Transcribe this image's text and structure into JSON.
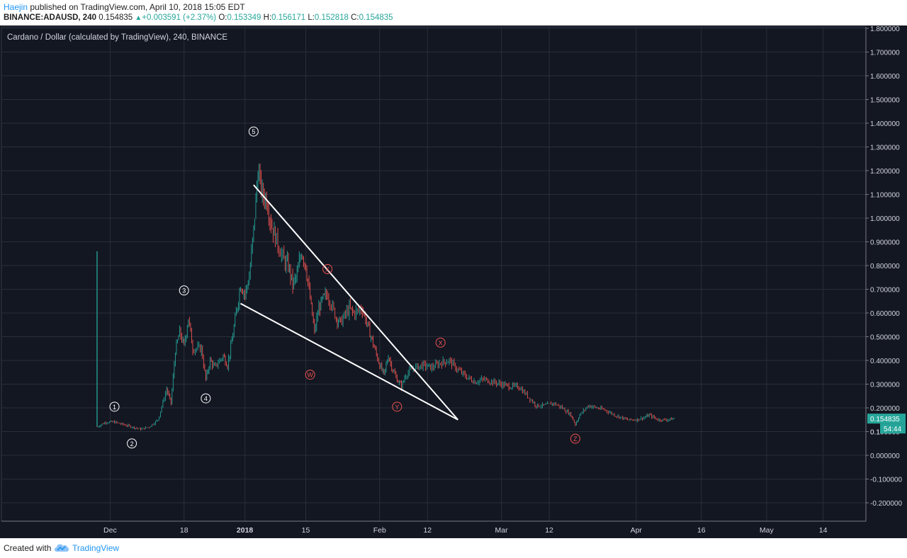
{
  "header": {
    "author": "Haejin",
    "published_text": " published on TradingView.com, April 10, 2018 15:05 EDT",
    "symbol": "BINANCE:ADAUSD, 240",
    "last": "0.154835",
    "change": "+0.003591 (+2.37%)",
    "o_label": "O:",
    "o": "0.153349",
    "h_label": "H:",
    "h": "0.156171",
    "l_label": "L:",
    "l": "0.152818",
    "c_label": "C:",
    "c": "0.154835"
  },
  "footer": {
    "created_with": "Created with",
    "brand": "TradingView"
  },
  "colors": {
    "background": "#131722",
    "grid": "#2a2e39",
    "up": "#26a69a",
    "down": "#ef5350",
    "trendline": "#ffffff",
    "wave_label_white": "#ffffff",
    "wave_label_red": "#ef5350",
    "price_badge": "#26a69a"
  },
  "chart_data": {
    "type": "candlestick",
    "title": "Cardano / Dollar (calculated by TradingView), 240, BINANCE",
    "xlabel": "",
    "ylabel": "",
    "ylim": [
      -0.3,
      1.8
    ],
    "grid": true,
    "x_start": "2017-11-28",
    "x_end": "2018-05-17",
    "x_ticks": [
      {
        "date": "2017-12-01",
        "label": "Dec"
      },
      {
        "date": "2017-12-18",
        "label": "18"
      },
      {
        "date": "2018-01-01",
        "label": "2018"
      },
      {
        "date": "2018-01-15",
        "label": "15"
      },
      {
        "date": "2018-02-01",
        "label": "Feb"
      },
      {
        "date": "2018-02-12",
        "label": "12"
      },
      {
        "date": "2018-03-01",
        "label": "Mar"
      },
      {
        "date": "2018-03-12",
        "label": "12"
      },
      {
        "date": "2018-04-01",
        "label": "Apr"
      },
      {
        "date": "2018-04-16",
        "label": "16"
      },
      {
        "date": "2018-05-01",
        "label": "May"
      },
      {
        "date": "2018-05-14",
        "label": "14"
      }
    ],
    "y_ticks": [
      "1.800000",
      "1.700000",
      "1.600000",
      "1.500000",
      "1.400000",
      "1.300000",
      "1.200000",
      "1.100000",
      "1.000000",
      "0.900000",
      "0.800000",
      "0.700000",
      "0.600000",
      "0.500000",
      "0.400000",
      "0.300000",
      "0.200000",
      "0.100000",
      "0.000000",
      "-0.100000",
      "-0.200000"
    ],
    "y_tick_values": [
      1.8,
      1.7,
      1.6,
      1.5,
      1.4,
      1.3,
      1.2,
      1.1,
      1.0,
      0.9,
      0.8,
      0.7,
      0.6,
      0.5,
      0.4,
      0.3,
      0.2,
      0.1,
      0.0,
      -0.1,
      -0.2
    ],
    "price_path": [
      [
        "2017-11-28",
        0.86
      ],
      [
        "2017-11-28",
        0.12
      ],
      [
        "2017-11-30",
        0.14
      ],
      [
        "2017-12-02",
        0.14
      ],
      [
        "2017-12-04",
        0.13
      ],
      [
        "2017-12-06",
        0.12
      ],
      [
        "2017-12-08",
        0.11
      ],
      [
        "2017-12-10",
        0.12
      ],
      [
        "2017-12-12",
        0.15
      ],
      [
        "2017-12-14",
        0.28
      ],
      [
        "2017-12-15",
        0.22
      ],
      [
        "2017-12-16",
        0.44
      ],
      [
        "2017-12-17",
        0.52
      ],
      [
        "2017-12-18",
        0.46
      ],
      [
        "2017-12-19",
        0.58
      ],
      [
        "2017-12-20",
        0.45
      ],
      [
        "2017-12-22",
        0.45
      ],
      [
        "2017-12-23",
        0.32
      ],
      [
        "2017-12-24",
        0.4
      ],
      [
        "2017-12-25",
        0.37
      ],
      [
        "2017-12-27",
        0.42
      ],
      [
        "2017-12-28",
        0.38
      ],
      [
        "2017-12-29",
        0.48
      ],
      [
        "2017-12-30",
        0.6
      ],
      [
        "2017-12-31",
        0.72
      ],
      [
        "2018-01-01",
        0.68
      ],
      [
        "2018-01-02",
        0.75
      ],
      [
        "2018-01-03",
        0.95
      ],
      [
        "2018-01-04",
        1.2
      ],
      [
        "2018-01-05",
        1.1
      ],
      [
        "2018-01-06",
        1.08
      ],
      [
        "2018-01-07",
        0.98
      ],
      [
        "2018-01-08",
        0.92
      ],
      [
        "2018-01-10",
        0.82
      ],
      [
        "2018-01-11",
        0.8
      ],
      [
        "2018-01-12",
        0.72
      ],
      [
        "2018-01-13",
        0.76
      ],
      [
        "2018-01-14",
        0.86
      ],
      [
        "2018-01-15",
        0.8
      ],
      [
        "2018-01-16",
        0.66
      ],
      [
        "2018-01-17",
        0.52
      ],
      [
        "2018-01-18",
        0.62
      ],
      [
        "2018-01-19",
        0.66
      ],
      [
        "2018-01-20",
        0.68
      ],
      [
        "2018-01-22",
        0.58
      ],
      [
        "2018-01-23",
        0.56
      ],
      [
        "2018-01-25",
        0.62
      ],
      [
        "2018-01-26",
        0.6
      ],
      [
        "2018-01-28",
        0.62
      ],
      [
        "2018-01-29",
        0.56
      ],
      [
        "2018-01-30",
        0.5
      ],
      [
        "2018-01-31",
        0.44
      ],
      [
        "2018-02-01",
        0.38
      ],
      [
        "2018-02-02",
        0.34
      ],
      [
        "2018-02-03",
        0.42
      ],
      [
        "2018-02-04",
        0.36
      ],
      [
        "2018-02-05",
        0.32
      ],
      [
        "2018-02-06",
        0.29
      ],
      [
        "2018-02-07",
        0.34
      ],
      [
        "2018-02-09",
        0.37
      ],
      [
        "2018-02-11",
        0.38
      ],
      [
        "2018-02-13",
        0.37
      ],
      [
        "2018-02-15",
        0.39
      ],
      [
        "2018-02-17",
        0.4
      ],
      [
        "2018-02-19",
        0.36
      ],
      [
        "2018-02-21",
        0.33
      ],
      [
        "2018-02-23",
        0.31
      ],
      [
        "2018-02-25",
        0.32
      ],
      [
        "2018-02-27",
        0.31
      ],
      [
        "2018-03-01",
        0.3
      ],
      [
        "2018-03-03",
        0.29
      ],
      [
        "2018-03-05",
        0.29
      ],
      [
        "2018-03-07",
        0.25
      ],
      [
        "2018-03-09",
        0.21
      ],
      [
        "2018-03-11",
        0.21
      ],
      [
        "2018-03-13",
        0.22
      ],
      [
        "2018-03-15",
        0.2
      ],
      [
        "2018-03-17",
        0.17
      ],
      [
        "2018-03-18",
        0.13
      ],
      [
        "2018-03-19",
        0.17
      ],
      [
        "2018-03-21",
        0.21
      ],
      [
        "2018-03-23",
        0.2
      ],
      [
        "2018-03-25",
        0.19
      ],
      [
        "2018-03-27",
        0.17
      ],
      [
        "2018-03-30",
        0.15
      ],
      [
        "2018-04-01",
        0.15
      ],
      [
        "2018-04-03",
        0.16
      ],
      [
        "2018-04-04",
        0.17
      ],
      [
        "2018-04-06",
        0.15
      ],
      [
        "2018-04-08",
        0.15
      ],
      [
        "2018-04-10",
        0.155
      ]
    ],
    "trendlines": [
      {
        "name": "upper",
        "from": [
          "2018-01-03",
          1.14
        ],
        "to": [
          "2018-02-19",
          0.15
        ]
      },
      {
        "name": "lower",
        "from": [
          "2017-12-31",
          0.64
        ],
        "to": [
          "2018-02-19",
          0.15
        ]
      }
    ],
    "annotations": [
      {
        "label": "1",
        "date": "2017-12-02",
        "value": 0.205,
        "color": "white"
      },
      {
        "label": "2",
        "date": "2017-12-06",
        "value": 0.05,
        "color": "white"
      },
      {
        "label": "3",
        "date": "2017-12-18",
        "value": 0.695,
        "color": "white"
      },
      {
        "label": "4",
        "date": "2017-12-23",
        "value": 0.24,
        "color": "white"
      },
      {
        "label": "5",
        "date": "2018-01-03",
        "value": 1.365,
        "color": "white"
      },
      {
        "label": "X",
        "date": "2018-01-20",
        "value": 0.785,
        "color": "red"
      },
      {
        "label": "W",
        "date": "2018-01-16",
        "value": 0.34,
        "color": "red"
      },
      {
        "label": "Y",
        "date": "2018-02-05",
        "value": 0.205,
        "color": "red"
      },
      {
        "label": "X",
        "date": "2018-02-15",
        "value": 0.475,
        "color": "red"
      },
      {
        "label": "Z",
        "date": "2018-03-18",
        "value": 0.07,
        "color": "red"
      }
    ],
    "last_price_label": "0.154835",
    "countdown_label": "54:44",
    "partial_tick_label": "0.1"
  }
}
